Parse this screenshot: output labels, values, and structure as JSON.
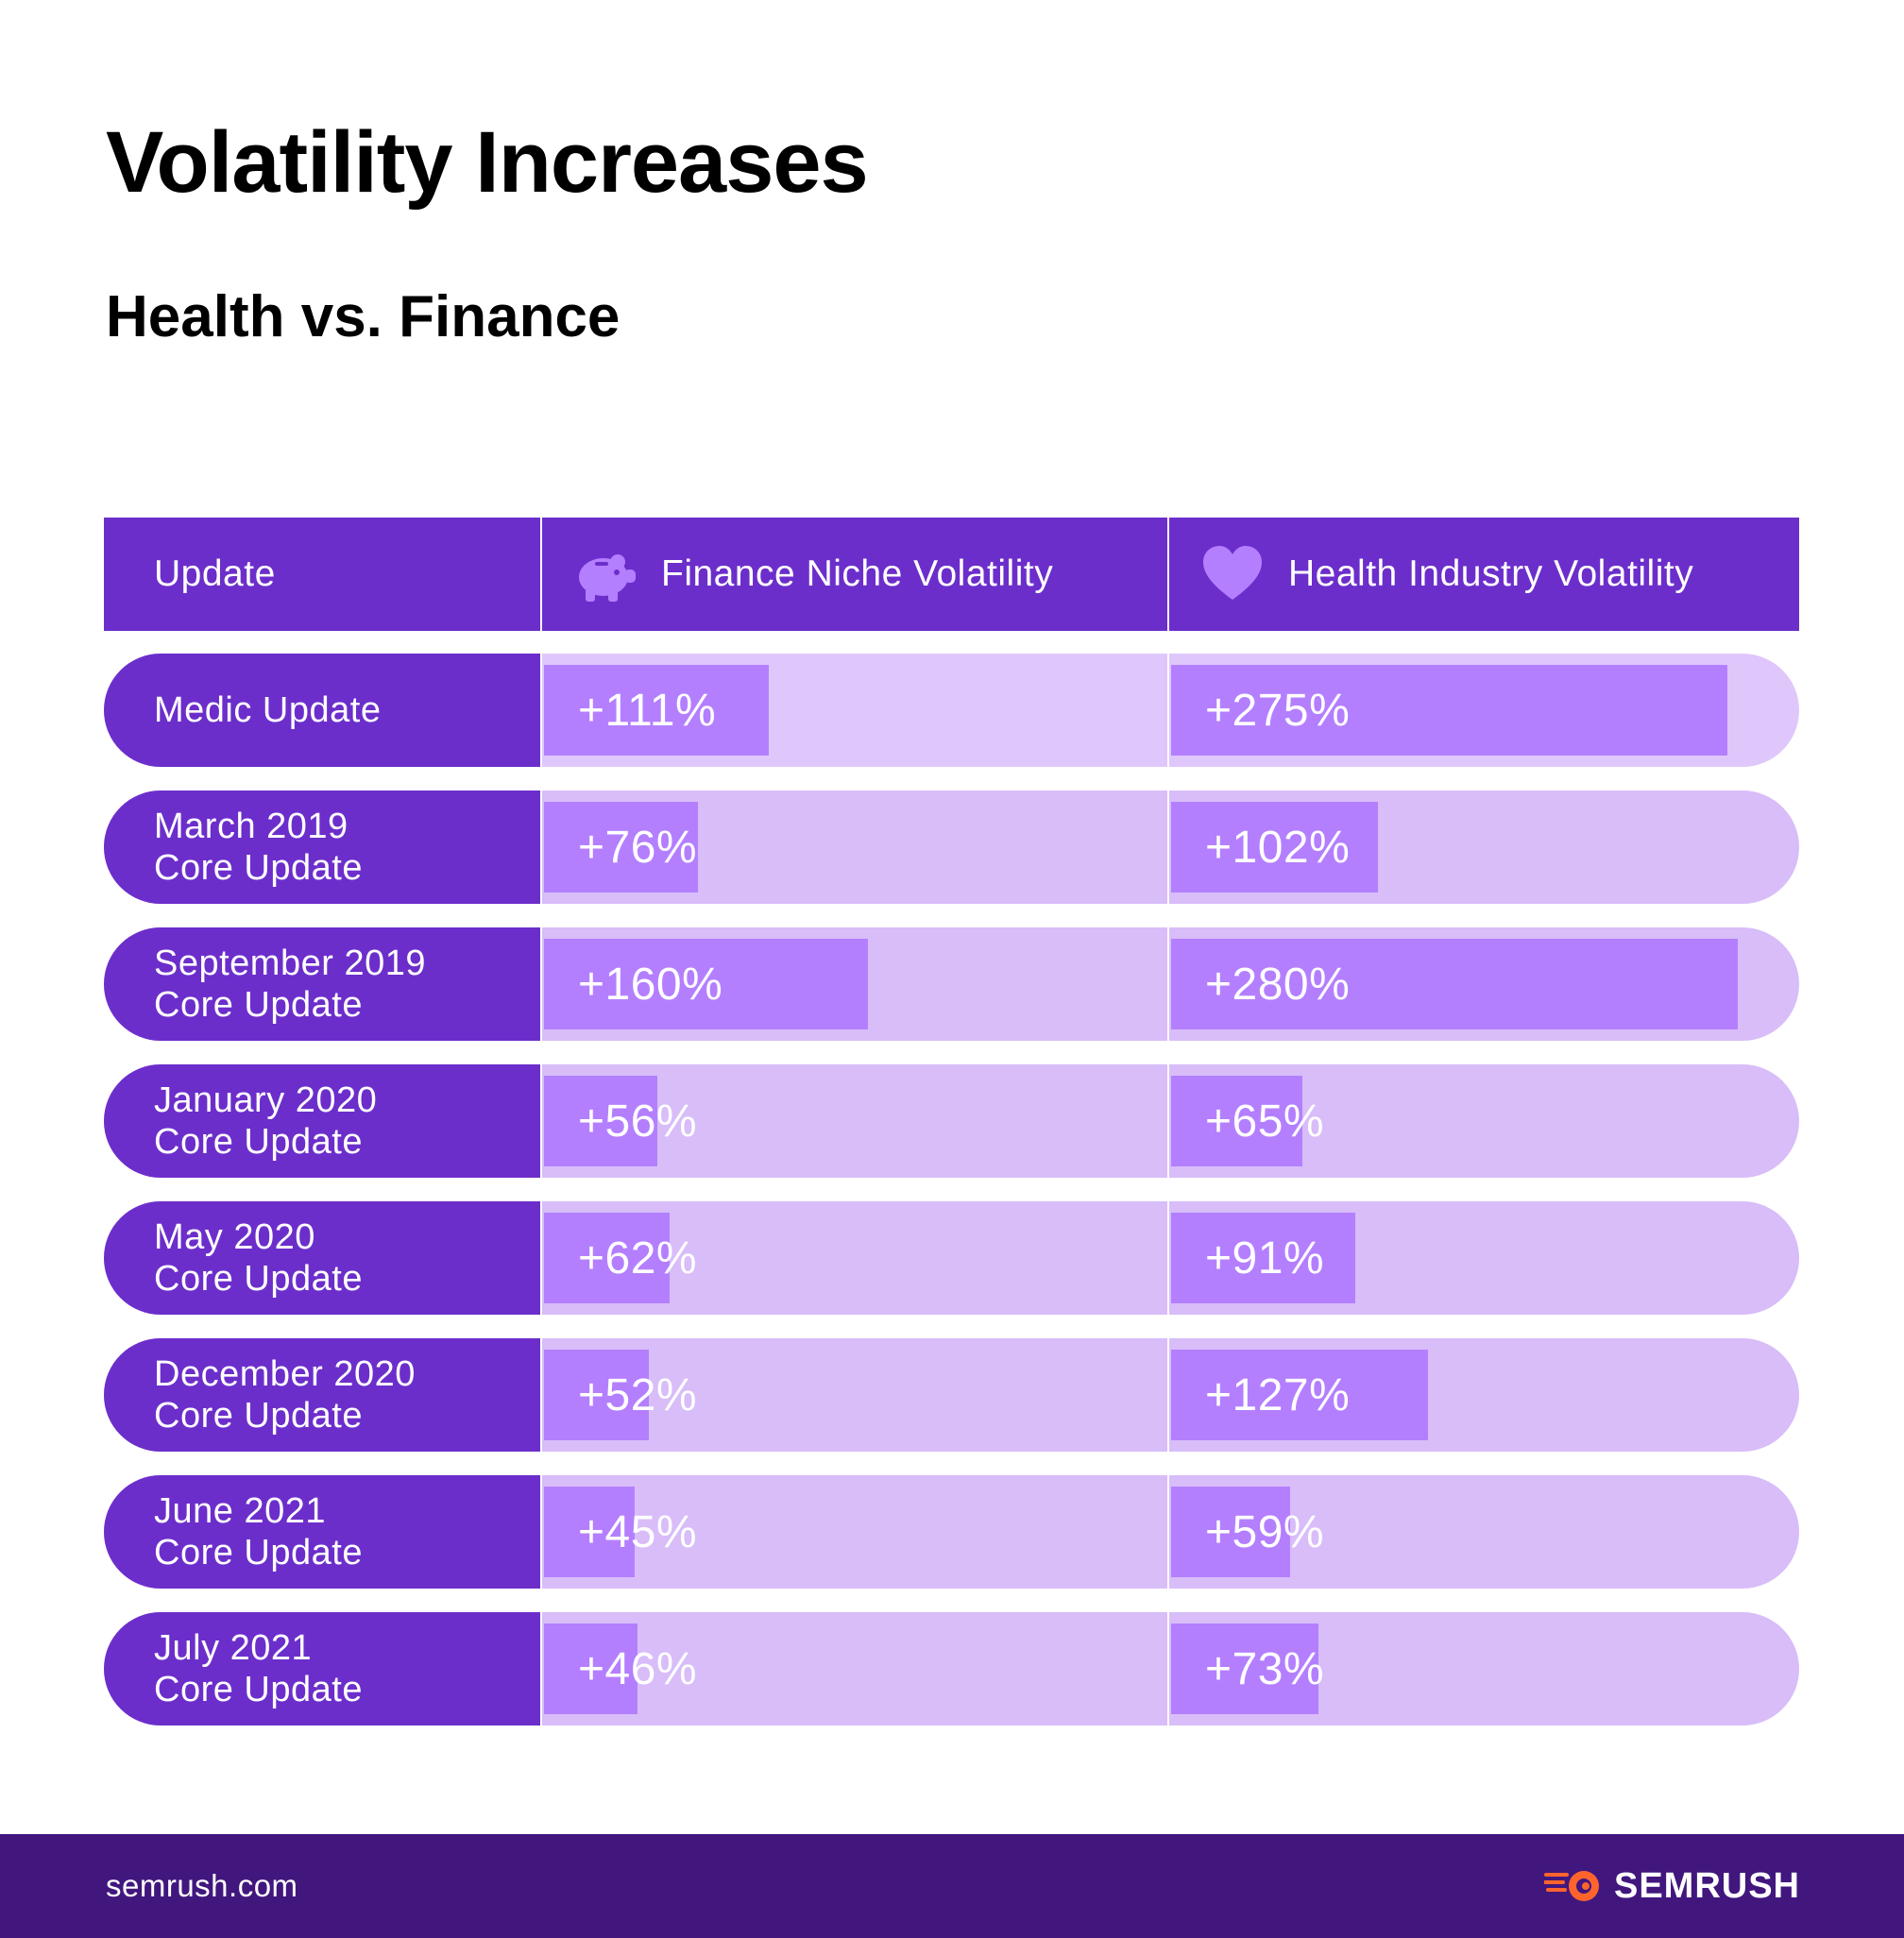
{
  "title": "Volatility Increases",
  "subtitle": "Health vs. Finance",
  "header": {
    "col1": "Update",
    "col2": "Finance Niche Volatility",
    "col3": "Health Industry Volatility",
    "col2_icon": "piggy-bank-icon",
    "col3_icon": "heart-icon"
  },
  "chart_data": {
    "type": "bar",
    "categories": [
      [
        "Medic Update"
      ],
      [
        "March 2019",
        "Core Update"
      ],
      [
        "September 2019",
        "Core Update"
      ],
      [
        "January 2020",
        "Core Update"
      ],
      [
        "May 2020",
        "Core Update"
      ],
      [
        "December 2020",
        "Core Update"
      ],
      [
        "June 2021",
        "Core Update"
      ],
      [
        "July 2021",
        "Core Update"
      ]
    ],
    "series": [
      {
        "name": "Finance Niche Volatility",
        "values": [
          111,
          76,
          160,
          56,
          62,
          52,
          45,
          46
        ],
        "labels": [
          "+111%",
          "+76%",
          "+160%",
          "+56%",
          "+62%",
          "+52%",
          "+45%",
          "+46%"
        ]
      },
      {
        "name": "Health Industry Volatility",
        "values": [
          275,
          102,
          280,
          65,
          91,
          127,
          59,
          73
        ],
        "labels": [
          "+275%",
          "+102%",
          "+280%",
          "+65%",
          "+91%",
          "+127%",
          "+59%",
          "+73%"
        ]
      }
    ],
    "colors": {
      "header": "#6c2ecb",
      "track": "#d8bdf9",
      "bar": "#b47ffe",
      "label_bg": "#6c2ecb"
    }
  },
  "footer": {
    "site": "semrush.com",
    "brand": "SEMRUSH",
    "brand_icon": "semrush-logo-icon",
    "background": "#41177e",
    "accent": "#ff642d"
  }
}
